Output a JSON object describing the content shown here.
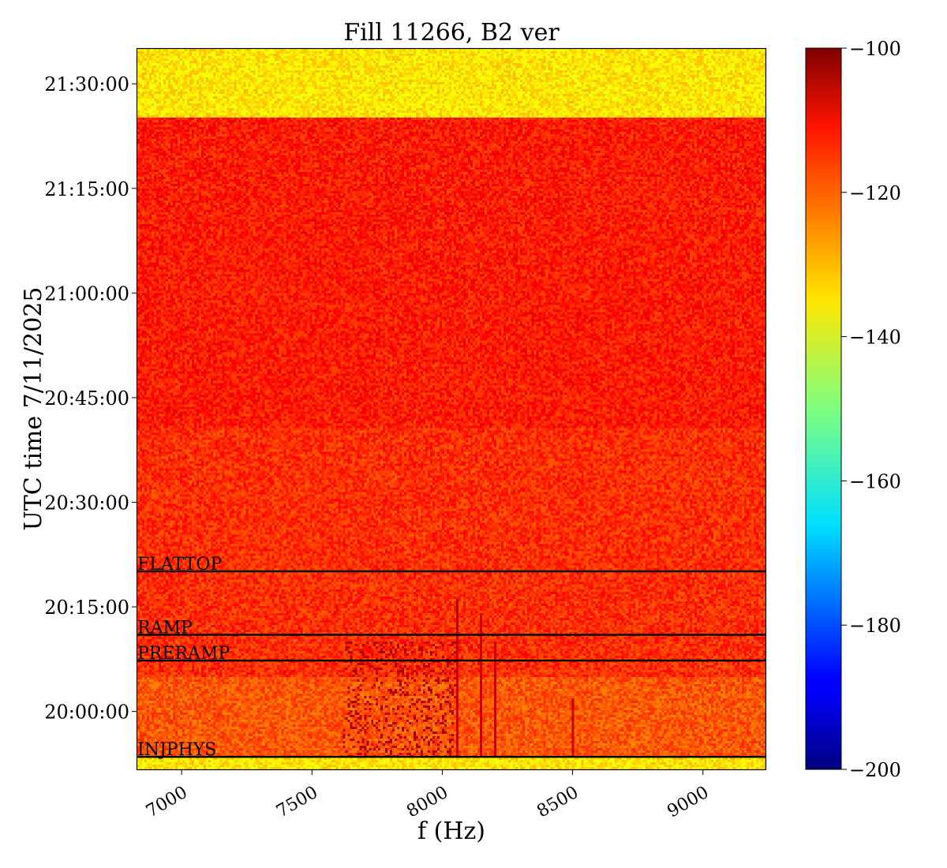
{
  "chart_data": {
    "type": "heatmap",
    "title": "Fill 11266, B2 ver",
    "xlabel": "f (Hz)",
    "ylabel": "UTC time 7/11/2025",
    "xlim": [
      6830,
      9240
    ],
    "xticks": [
      7000,
      7500,
      8000,
      8500,
      9000
    ],
    "xtick_labels": [
      "7000",
      "7500",
      "8000",
      "8500",
      "9000"
    ],
    "y_time_range": [
      "19:51:42",
      "21:35:00"
    ],
    "ytick_labels": [
      "20:00:00",
      "20:15:00",
      "20:30:00",
      "20:45:00",
      "21:00:00",
      "21:15:00",
      "21:30:00"
    ],
    "ytick_minutes": [
      480,
      495,
      510,
      525,
      540,
      555,
      570
    ],
    "y_minutes_range": [
      471.7,
      575.0
    ],
    "colorbar": {
      "colormap": "jet",
      "range": [
        -200,
        -100
      ],
      "ticks": [
        -100,
        -120,
        -140,
        -160,
        -180,
        -200
      ],
      "tick_labels": [
        "−100",
        "−120",
        "−140",
        "−160",
        "−180",
        "−200"
      ]
    },
    "regions": [
      {
        "from_minute": 471.7,
        "to_minute": 473.5,
        "level_dB": -135
      },
      {
        "from_minute": 473.5,
        "to_minute": 485.0,
        "level_dB": -121
      },
      {
        "from_minute": 485.0,
        "to_minute": 520.5,
        "level_dB": -117
      },
      {
        "from_minute": 520.5,
        "to_minute": 565.0,
        "level_dB": -115
      },
      {
        "from_minute": 565.0,
        "to_minute": 575.0,
        "level_dB": -135
      }
    ],
    "spectral_lines_hz": [
      8060,
      8150,
      8200,
      8500
    ],
    "phase_markers": [
      {
        "label": "INJPHYS",
        "minute": 473.5
      },
      {
        "label": "PRERAMP",
        "minute": 487.3
      },
      {
        "label": "RAMP",
        "minute": 491.0
      },
      {
        "label": "FLATTOP",
        "minute": 500.1
      }
    ]
  }
}
